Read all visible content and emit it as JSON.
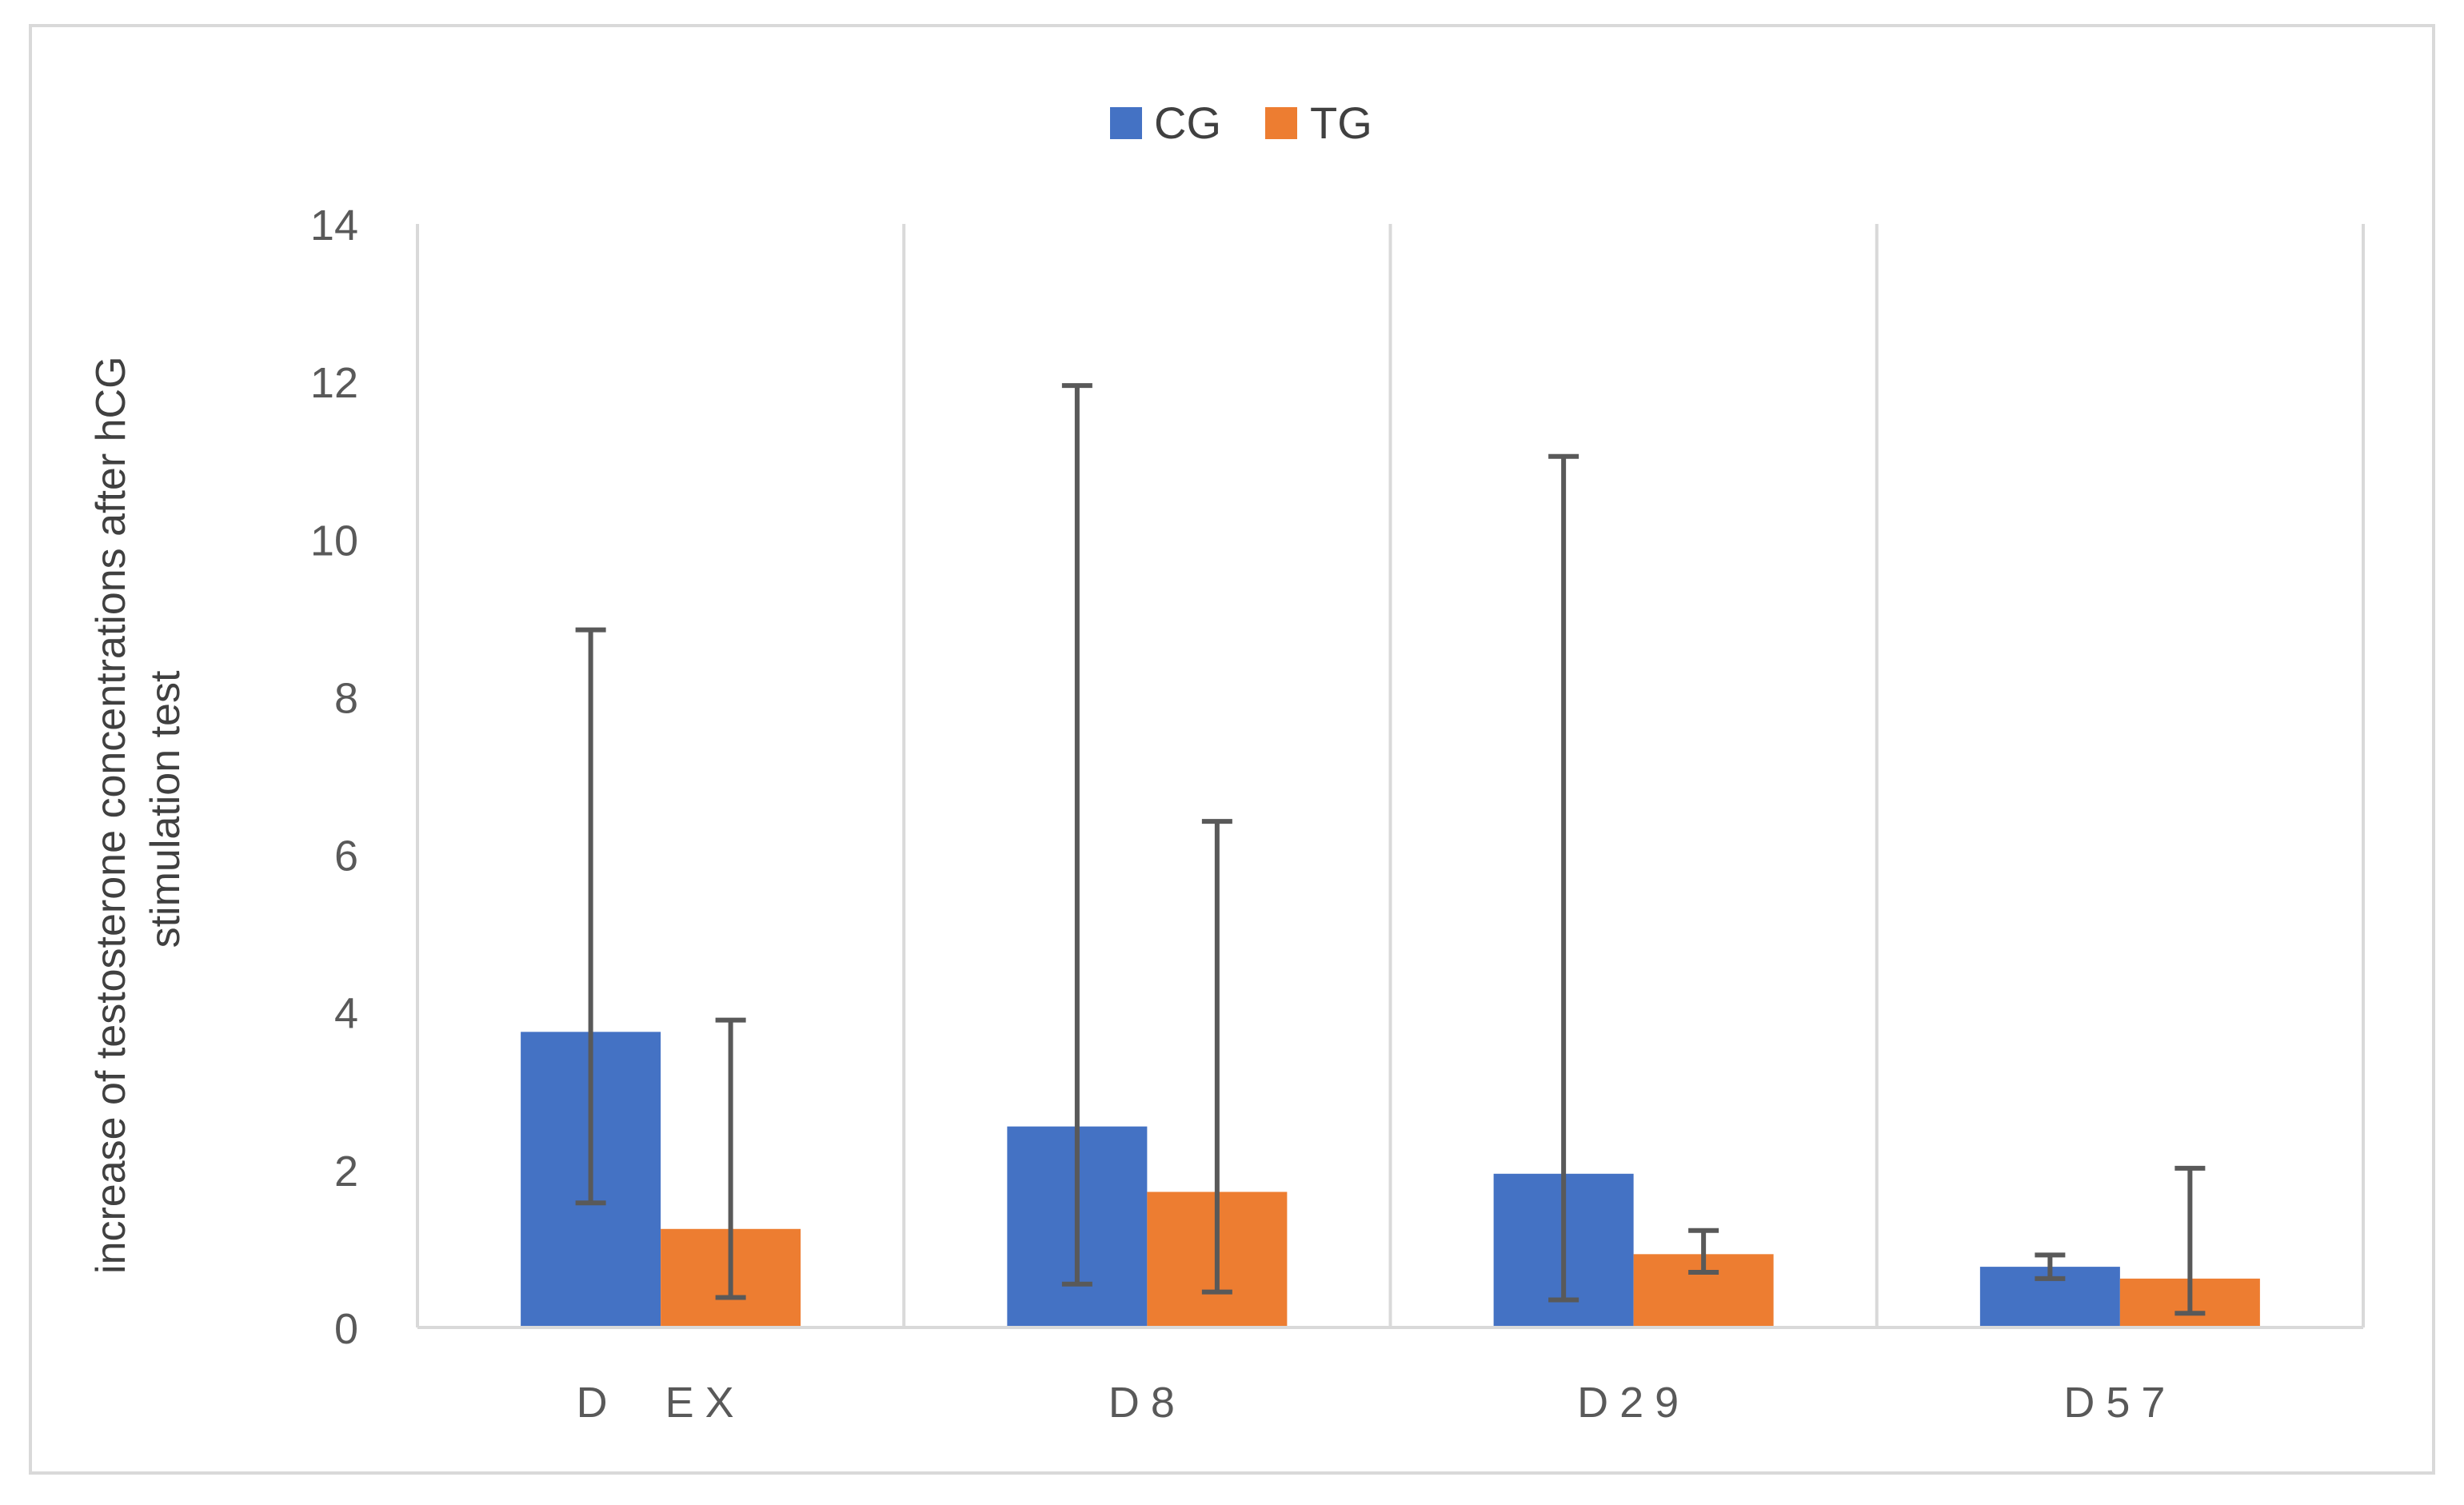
{
  "chart_data": {
    "type": "bar",
    "title": "",
    "xlabel": "",
    "ylabel": "increase of testosterone concentrations after hCG stimulation test",
    "ylabel_lines": [
      "increase of testosterone concentrations after hCG",
      "stimulation test"
    ],
    "categories": [
      "D  EX",
      "D8",
      "D29",
      "D57"
    ],
    "ylim": [
      0,
      14
    ],
    "yticks": [
      "0",
      "2",
      "4",
      "6",
      "8",
      "10",
      "12",
      "14"
    ],
    "legend_position": "top-center",
    "grid": "vertical category separators",
    "series": [
      {
        "name": "CG",
        "color": "#4472C4",
        "values": [
          3.75,
          2.55,
          1.95,
          0.77
        ],
        "error_low": [
          1.58,
          0.55,
          0.35,
          0.62
        ],
        "error_high": [
          8.85,
          11.95,
          11.05,
          0.92
        ]
      },
      {
        "name": "TG",
        "color": "#ED7D31",
        "values": [
          1.25,
          1.72,
          0.93,
          0.62
        ],
        "error_low": [
          0.38,
          0.45,
          0.7,
          0.18
        ],
        "error_high": [
          3.9,
          6.42,
          1.23,
          2.02
        ]
      }
    ],
    "colors": {
      "frame": "#D9D9D9",
      "gridline": "#D9D9D9",
      "error_bar": "#595959",
      "text": "#595959",
      "ylabel": "#404040"
    }
  }
}
